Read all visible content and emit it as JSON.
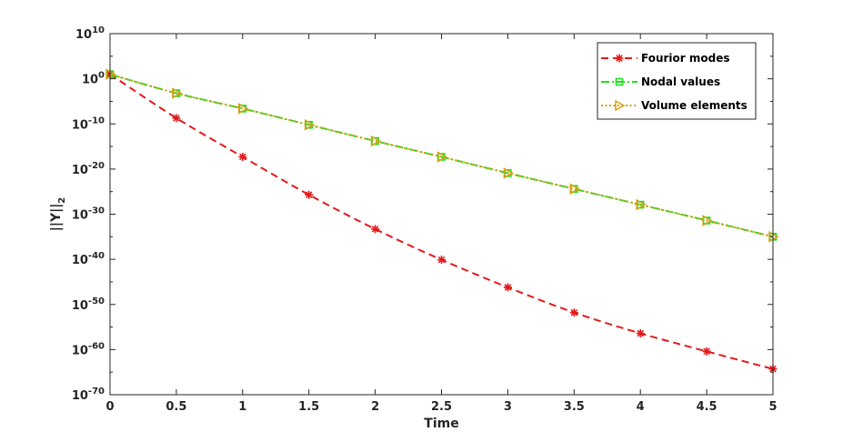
{
  "chart_data": {
    "type": "line",
    "xlabel": "Time",
    "ylabel": "||Y||",
    "ylabel_subscript": "2",
    "y_scale": "log",
    "xlim": [
      0,
      5
    ],
    "ylim_log10": [
      -70,
      10
    ],
    "x_ticks": [
      {
        "value": 0,
        "label": "0"
      },
      {
        "value": 0.5,
        "label": "0.5"
      },
      {
        "value": 1,
        "label": "1"
      },
      {
        "value": 1.5,
        "label": "1.5"
      },
      {
        "value": 2,
        "label": "2"
      },
      {
        "value": 2.5,
        "label": "2.5"
      },
      {
        "value": 3,
        "label": "3"
      },
      {
        "value": 3.5,
        "label": "3.5"
      },
      {
        "value": 4,
        "label": "4"
      },
      {
        "value": 4.5,
        "label": "4.5"
      },
      {
        "value": 5,
        "label": "5"
      }
    ],
    "y_ticks": [
      {
        "exp": 10,
        "base": "10",
        "sup": "10"
      },
      {
        "exp": 0,
        "base": "10",
        "sup": "0"
      },
      {
        "exp": -10,
        "base": "10",
        "sup": "-10"
      },
      {
        "exp": -20,
        "base": "10",
        "sup": "-20"
      },
      {
        "exp": -30,
        "base": "10",
        "sup": "-30"
      },
      {
        "exp": -40,
        "base": "10",
        "sup": "-40"
      },
      {
        "exp": -50,
        "base": "10",
        "sup": "-50"
      },
      {
        "exp": -60,
        "base": "10",
        "sup": "-60"
      },
      {
        "exp": -70,
        "base": "10",
        "sup": "-70"
      }
    ],
    "grid": false,
    "legend_position": "top-right",
    "series": [
      {
        "name": "Fourior modes",
        "color": "#e41a1c",
        "line_style": "dashed",
        "marker": "asterisk",
        "x": [
          0,
          0.5,
          1,
          1.5,
          2,
          2.5,
          3,
          3.5,
          4,
          4.5,
          5
        ],
        "log10_y": [
          1,
          -8.7,
          -17.3,
          -25.7,
          -33.3,
          -40.1,
          -46.2,
          -51.8,
          -56.4,
          -60.4,
          -64.3
        ]
      },
      {
        "name": "Nodal  values",
        "color": "#22dd22",
        "line_style": "dash-dot",
        "marker": "square",
        "x": [
          0,
          0.5,
          1,
          1.5,
          2,
          2.5,
          3,
          3.5,
          4,
          4.5,
          5
        ],
        "log10_y": [
          1,
          -3.2,
          -6.6,
          -10.2,
          -13.8,
          -17.3,
          -20.9,
          -24.4,
          -27.9,
          -31.4,
          -35.0
        ]
      },
      {
        "name": "Volume elements",
        "color": "#d4a017",
        "line_style": "dotted",
        "marker": "triangle-right",
        "x": [
          0,
          0.5,
          1,
          1.5,
          2,
          2.5,
          3,
          3.5,
          4,
          4.5,
          5
        ],
        "log10_y": [
          1,
          -3.2,
          -6.6,
          -10.2,
          -13.8,
          -17.3,
          -20.9,
          -24.4,
          -27.9,
          -31.4,
          -35.0
        ]
      }
    ]
  }
}
